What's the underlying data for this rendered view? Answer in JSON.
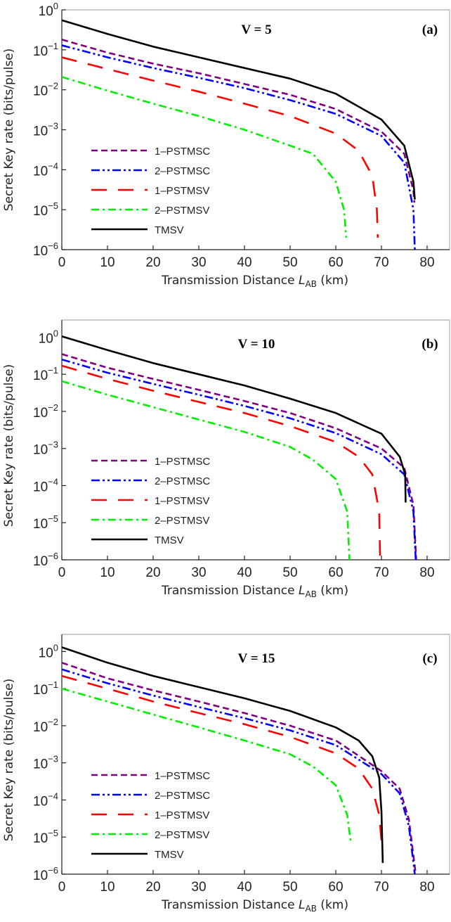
{
  "chart_data": [
    {
      "type": "line",
      "panel_label": "(a)",
      "annotation": "V = 5",
      "xlabel": "Transmission Distance L_AB (km)",
      "xlabel_main": "Transmission Distance ",
      "xlabel_var": "L",
      "xlabel_sub": "AB",
      "xlabel_unit": " (km)",
      "ylabel": "Secret Key rate (bits/pulse)",
      "y_scale": "log",
      "xlim": [
        0,
        85
      ],
      "ylim": [
        1e-06,
        1
      ],
      "x_ticks": [
        "0",
        "10",
        "20",
        "30",
        "40",
        "50",
        "60",
        "70",
        "80"
      ],
      "y_ticks": [
        "0",
        "−1",
        "−2",
        "−3",
        "−4",
        "−5",
        "−6"
      ],
      "y_tick_base": "10",
      "grid": false,
      "legend_placement": "lower-left",
      "series": [
        {
          "name": "1–PSTMSC",
          "color": "#800080",
          "style": "dashed",
          "x": [
            0,
            10,
            20,
            30,
            40,
            50,
            60,
            70,
            75,
            77,
            77.2
          ],
          "y": [
            0.18,
            0.085,
            0.045,
            0.026,
            0.014,
            0.0075,
            0.0033,
            0.0009,
            0.00025,
            3e-05,
            1.5e-05
          ]
        },
        {
          "name": "2–PSTMSC",
          "color": "#0000ff",
          "style": "dash-dot-dot",
          "x": [
            0,
            10,
            20,
            30,
            40,
            50,
            60,
            70,
            75,
            77,
            77.3
          ],
          "y": [
            0.13,
            0.065,
            0.035,
            0.02,
            0.011,
            0.0055,
            0.0025,
            0.0007,
            0.00015,
            1e-05,
            1e-06
          ]
        },
        {
          "name": "1–PSTMSV",
          "color": "#ff0000",
          "style": "long-dashed",
          "x": [
            0,
            10,
            20,
            30,
            40,
            50,
            60,
            65,
            68,
            69,
            69.2
          ],
          "y": [
            0.065,
            0.033,
            0.017,
            0.009,
            0.0045,
            0.0022,
            0.0008,
            0.0003,
            7e-05,
            1e-05,
            2e-06
          ]
        },
        {
          "name": "2–PSTMSV",
          "color": "#00ee00",
          "style": "dash-dot",
          "x": [
            0,
            10,
            20,
            30,
            40,
            50,
            55,
            60,
            61.8,
            62.3
          ],
          "y": [
            0.021,
            0.0095,
            0.0045,
            0.0022,
            0.001,
            0.0004,
            0.00025,
            5e-05,
            1e-05,
            2e-06
          ]
        },
        {
          "name": "TMSV",
          "color": "#000000",
          "style": "solid",
          "x": [
            0,
            10,
            20,
            30,
            40,
            50,
            60,
            70,
            75,
            77,
            77.3
          ],
          "y": [
            0.55,
            0.25,
            0.12,
            0.065,
            0.035,
            0.019,
            0.008,
            0.0018,
            0.0004,
            5e-05,
            1.8e-05
          ]
        }
      ]
    },
    {
      "type": "line",
      "panel_label": "(b)",
      "annotation": "V = 10",
      "xlabel": "Transmission Distance L_AB (km)",
      "xlabel_main": "Transmission Distance ",
      "xlabel_var": "L",
      "xlabel_sub": "AB",
      "xlabel_unit": " (km)",
      "ylabel": "Secret Key rate (bits/pulse)",
      "y_scale": "log",
      "xlim": [
        0,
        85
      ],
      "ylim": [
        1e-06,
        2.9
      ],
      "x_ticks": [
        "0",
        "10",
        "20",
        "30",
        "40",
        "50",
        "60",
        "70",
        "80"
      ],
      "y_ticks": [
        "0",
        "−1",
        "−2",
        "−3",
        "−4",
        "−5",
        "−6"
      ],
      "y_tick_base": "10",
      "grid": false,
      "legend_placement": "lower-left",
      "series": [
        {
          "name": "1–PSTMSC",
          "color": "#800080",
          "style": "dashed",
          "x": [
            0,
            10,
            20,
            30,
            40,
            50,
            60,
            70,
            75,
            77,
            77.6
          ],
          "y": [
            0.35,
            0.15,
            0.075,
            0.038,
            0.019,
            0.009,
            0.0035,
            0.001,
            0.0003,
            3e-05,
            1e-06
          ]
        },
        {
          "name": "2–PSTMSC",
          "color": "#0000ff",
          "style": "dash-dot-dot",
          "x": [
            0,
            10,
            20,
            30,
            40,
            50,
            60,
            70,
            75,
            77,
            77.5
          ],
          "y": [
            0.25,
            0.11,
            0.055,
            0.028,
            0.014,
            0.0065,
            0.0026,
            0.0007,
            0.0002,
            2e-05,
            1e-06
          ]
        },
        {
          "name": "1–PSTMSV",
          "color": "#ff0000",
          "style": "long-dashed",
          "x": [
            0,
            10,
            20,
            30,
            40,
            50,
            60,
            65,
            68,
            69.5,
            69.7
          ],
          "y": [
            0.17,
            0.075,
            0.036,
            0.018,
            0.009,
            0.004,
            0.0015,
            0.0006,
            0.0002,
            2e-05,
            1e-06
          ]
        },
        {
          "name": "2–PSTMSV",
          "color": "#00ee00",
          "style": "dash-dot",
          "x": [
            0,
            10,
            20,
            30,
            40,
            50,
            55,
            60,
            62.5,
            63
          ],
          "y": [
            0.065,
            0.028,
            0.013,
            0.006,
            0.0028,
            0.0011,
            0.0005,
            0.00015,
            2e-05,
            1e-06
          ]
        },
        {
          "name": "TMSV",
          "color": "#000000",
          "style": "solid",
          "x": [
            0,
            10,
            20,
            30,
            40,
            50,
            60,
            70,
            74,
            75.2,
            75.3
          ],
          "y": [
            1.05,
            0.45,
            0.2,
            0.1,
            0.05,
            0.022,
            0.009,
            0.0025,
            0.0006,
            0.0002,
            3.5e-05
          ]
        }
      ]
    },
    {
      "type": "line",
      "panel_label": "(c)",
      "annotation": "V = 15",
      "xlabel": "Transmission Distance L_AB (km)",
      "xlabel_main": "Transmission Distance ",
      "xlabel_var": "L",
      "xlabel_sub": "AB",
      "xlabel_unit": " (km)",
      "ylabel": "Secret Key rate (bits/pulse)",
      "y_scale": "log",
      "xlim": [
        0,
        85
      ],
      "ylim": [
        1e-06,
        2.9
      ],
      "x_ticks": [
        "0",
        "10",
        "20",
        "30",
        "40",
        "50",
        "60",
        "70",
        "80"
      ],
      "y_ticks": [
        "0",
        "−1",
        "−2",
        "−3",
        "−4",
        "−5",
        "−6"
      ],
      "y_tick_base": "10",
      "grid": false,
      "legend_placement": "lower-left",
      "series": [
        {
          "name": "1–PSTMSC",
          "color": "#800080",
          "style": "dashed",
          "x": [
            0,
            10,
            20,
            30,
            40,
            50,
            60,
            70,
            74,
            76,
            77.5
          ],
          "y": [
            0.5,
            0.19,
            0.09,
            0.045,
            0.022,
            0.01,
            0.004,
            0.0006,
            0.0002,
            3e-05,
            1e-06
          ]
        },
        {
          "name": "2–PSTMSC",
          "color": "#0000ff",
          "style": "dash-dot-dot",
          "x": [
            0,
            10,
            20,
            30,
            40,
            50,
            60,
            70,
            74,
            76,
            77.3
          ],
          "y": [
            0.33,
            0.14,
            0.065,
            0.032,
            0.016,
            0.0075,
            0.003,
            0.0005,
            0.00015,
            2e-05,
            1e-06
          ]
        },
        {
          "name": "1–PSTMSV",
          "color": "#ff0000",
          "style": "long-dashed",
          "x": [
            0,
            10,
            20,
            30,
            40,
            50,
            60,
            65,
            68,
            69.5,
            70
          ],
          "y": [
            0.22,
            0.1,
            0.045,
            0.022,
            0.011,
            0.005,
            0.0018,
            0.0007,
            0.0002,
            4e-05,
            8e-06
          ]
        },
        {
          "name": "2–PSTMSV",
          "color": "#00ee00",
          "style": "dash-dot",
          "x": [
            0,
            10,
            20,
            30,
            40,
            50,
            55,
            60,
            62.5,
            63.3
          ],
          "y": [
            0.1,
            0.045,
            0.02,
            0.009,
            0.004,
            0.0017,
            0.0008,
            0.00025,
            4e-05,
            7e-06
          ]
        },
        {
          "name": "TMSV",
          "color": "#000000",
          "style": "solid",
          "x": [
            0,
            10,
            20,
            30,
            40,
            50,
            60,
            65,
            68,
            69.5,
            70,
            70.3
          ],
          "y": [
            1.3,
            0.5,
            0.22,
            0.11,
            0.055,
            0.025,
            0.009,
            0.004,
            0.0015,
            0.0004,
            5e-05,
            2e-06
          ]
        }
      ]
    }
  ]
}
